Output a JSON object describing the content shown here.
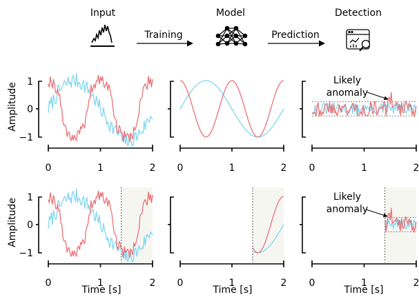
{
  "header": {
    "input_label": "Input",
    "model_label": "Model",
    "detection_label": "Detection",
    "training_label": "Training",
    "prediction_label": "Prediction"
  },
  "icons": {
    "input": "waveform-icon",
    "model": "neural-network-icon",
    "detection": "dashboard-magnifier-icon"
  },
  "colors": {
    "blue": "#7fd6f0",
    "red": "#ea7075",
    "shade": "#f6f6f1",
    "dashed": "#555555"
  },
  "annotation": {
    "line1": "Likely",
    "line2": "anomaly"
  },
  "axes": {
    "ylabel": "Amplitude",
    "xlabel": "Time [s]",
    "x_ticks": [
      "0",
      "1",
      "2"
    ],
    "y_ticks": [
      "1",
      "0",
      "−1"
    ]
  },
  "chart_data": [
    {
      "id": "input-full",
      "type": "line",
      "xlim": [
        0,
        2
      ],
      "ylim": [
        -1.2,
        1.2
      ],
      "series": [
        {
          "values": "noisy sine + cosine"
        }
      ]
    },
    {
      "id": "model-full",
      "type": "line",
      "xlim": [
        0,
        2
      ],
      "ylim": [
        -1.2,
        1.2
      ]
    },
    {
      "id": "detect-full",
      "type": "line",
      "xlim": [
        0,
        2
      ],
      "ylim": [
        -1.2,
        1.2
      ],
      "threshold": [
        0.25,
        -0.25
      ]
    },
    {
      "id": "input-window",
      "type": "line",
      "xlim": [
        0,
        2
      ],
      "ylim": [
        -1.2,
        1.2
      ],
      "window_start": 1.4
    },
    {
      "id": "model-window",
      "type": "line",
      "xlim": [
        0,
        2
      ],
      "ylim": [
        -1.2,
        1.2
      ],
      "window_start": 1.4
    },
    {
      "id": "detect-window",
      "type": "line",
      "xlim": [
        0,
        2
      ],
      "ylim": [
        -1.2,
        1.2
      ],
      "window_start": 1.4,
      "threshold": [
        0.25,
        -0.25
      ]
    }
  ]
}
